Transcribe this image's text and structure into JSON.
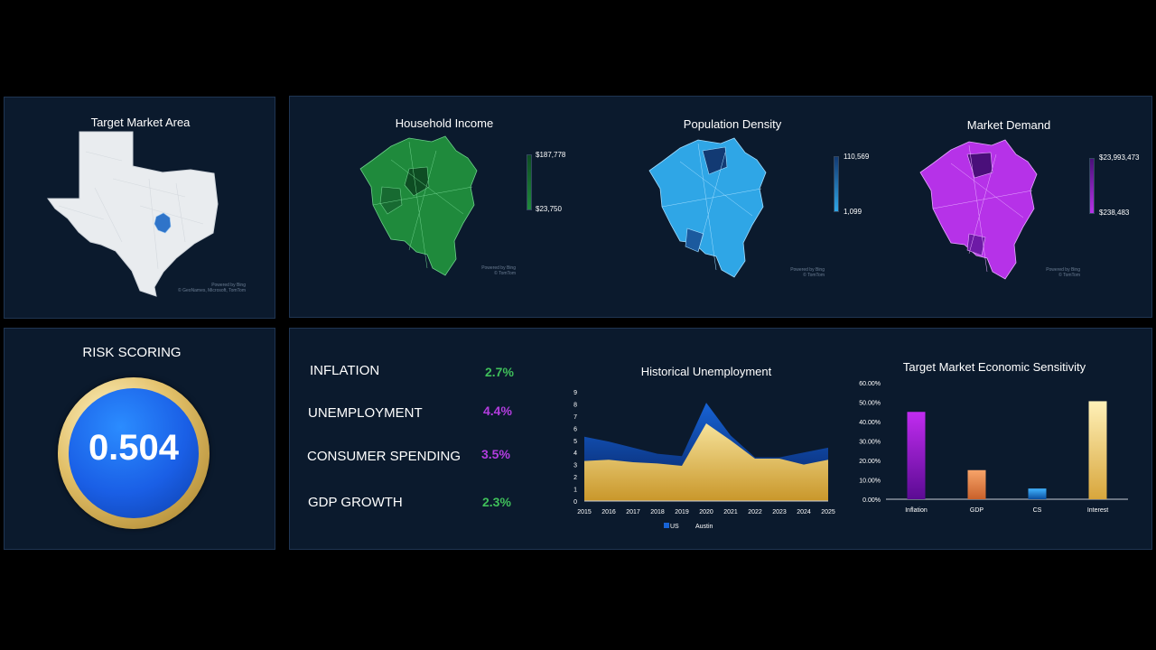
{
  "target_market": {
    "title": "Target Market Area",
    "credit_1": "Powered by Bing",
    "credit_2": "© GeoNames, Microsoft, TomTom",
    "map_icon": "texas-map-icon"
  },
  "maps": {
    "household_income": {
      "title": "Household Income",
      "legend_max": "$187,778",
      "legend_min": "$23,750",
      "color_low": "#1f8a3c",
      "color_high": "#0e4d23",
      "credit_1": "Powered by Bing",
      "credit_2": "© TomTom"
    },
    "population_density": {
      "title": "Population Density",
      "legend_max": "110,569",
      "legend_min": "1,099",
      "color_low": "#2fa6e6",
      "color_high": "#123a73",
      "credit_1": "Powered by Bing",
      "credit_2": "© TomTom"
    },
    "market_demand": {
      "title": "Market Demand",
      "legend_max": "$23,993,473",
      "legend_min": "$238,483",
      "color_low": "#b632e8",
      "color_high": "#4a0f7a",
      "credit_1": "Powered by Bing",
      "credit_2": "© TomTom"
    }
  },
  "risk": {
    "title": "RISK SCORING",
    "score": "0.504",
    "score_value": 0.504
  },
  "kpis": [
    {
      "name": "INFLATION",
      "value": "2.7%",
      "color": "#3fbf5a"
    },
    {
      "name": "UNEMPLOYMENT",
      "value": "4.4%",
      "color": "#b43de0"
    },
    {
      "name": "CONSUMER SPENDING",
      "value": "3.5%",
      "color": "#b43de0"
    },
    {
      "name": "GDP GROWTH",
      "value": "2.3%",
      "color": "#3fbf5a"
    }
  ],
  "chart_data": [
    {
      "type": "area",
      "title": "Historical Unemployment",
      "x": [
        "2015",
        "2016",
        "2017",
        "2018",
        "2019",
        "2020",
        "2021",
        "2022",
        "2023",
        "2024",
        "2025"
      ],
      "ylim": [
        0,
        9
      ],
      "yticks": [
        "0",
        "1",
        "2",
        "3",
        "4",
        "5",
        "6",
        "7",
        "8",
        "9"
      ],
      "series": [
        {
          "name": "US",
          "values": [
            5.3,
            4.9,
            4.4,
            3.9,
            3.7,
            8.1,
            5.4,
            3.6,
            3.6,
            4.0,
            4.4
          ],
          "color": "#0f3fa3"
        },
        {
          "name": "Austin",
          "values": [
            3.3,
            3.4,
            3.2,
            3.1,
            2.9,
            6.4,
            5.0,
            3.5,
            3.5,
            3.0,
            3.4
          ],
          "color": "#e7c24a"
        }
      ],
      "legend": "bottom"
    },
    {
      "type": "bar",
      "title": "Target Market Economic Sensitivity",
      "categories": [
        "Inflation",
        "GDP",
        "CS",
        "Interest"
      ],
      "values": [
        0.45,
        0.15,
        0.055,
        0.505
      ],
      "colors": [
        "#a21ee0",
        "#f08a4b",
        "#1f8fe0",
        "#f2d27a"
      ],
      "ylim": [
        0,
        0.6
      ],
      "yticks": [
        "0.00%",
        "10.00%",
        "20.00%",
        "30.00%",
        "40.00%",
        "50.00%",
        "60.00%"
      ]
    }
  ]
}
